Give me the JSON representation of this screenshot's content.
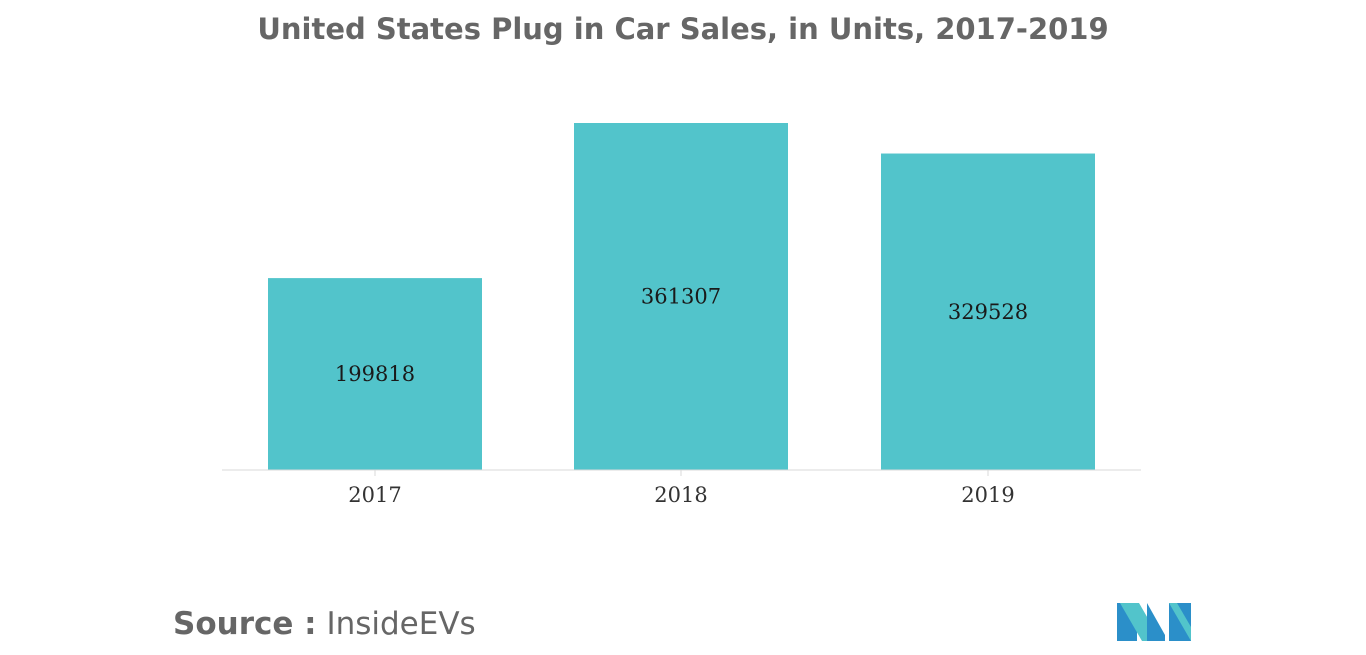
{
  "chart_data": {
    "type": "bar",
    "title": "United States Plug in Car Sales, in Units, 2017-2019",
    "categories": [
      "2017",
      "2018",
      "2019"
    ],
    "values": [
      199818,
      361307,
      329528
    ],
    "ylim": [
      0,
      361307
    ],
    "grid": false,
    "bar_color": "#52c4cb"
  },
  "source": {
    "label": "Source :",
    "text": "InsideEVs"
  },
  "logo": {
    "icon": "mordor-logo-icon",
    "colors": [
      "#2b8fc9",
      "#52c4cb"
    ]
  }
}
